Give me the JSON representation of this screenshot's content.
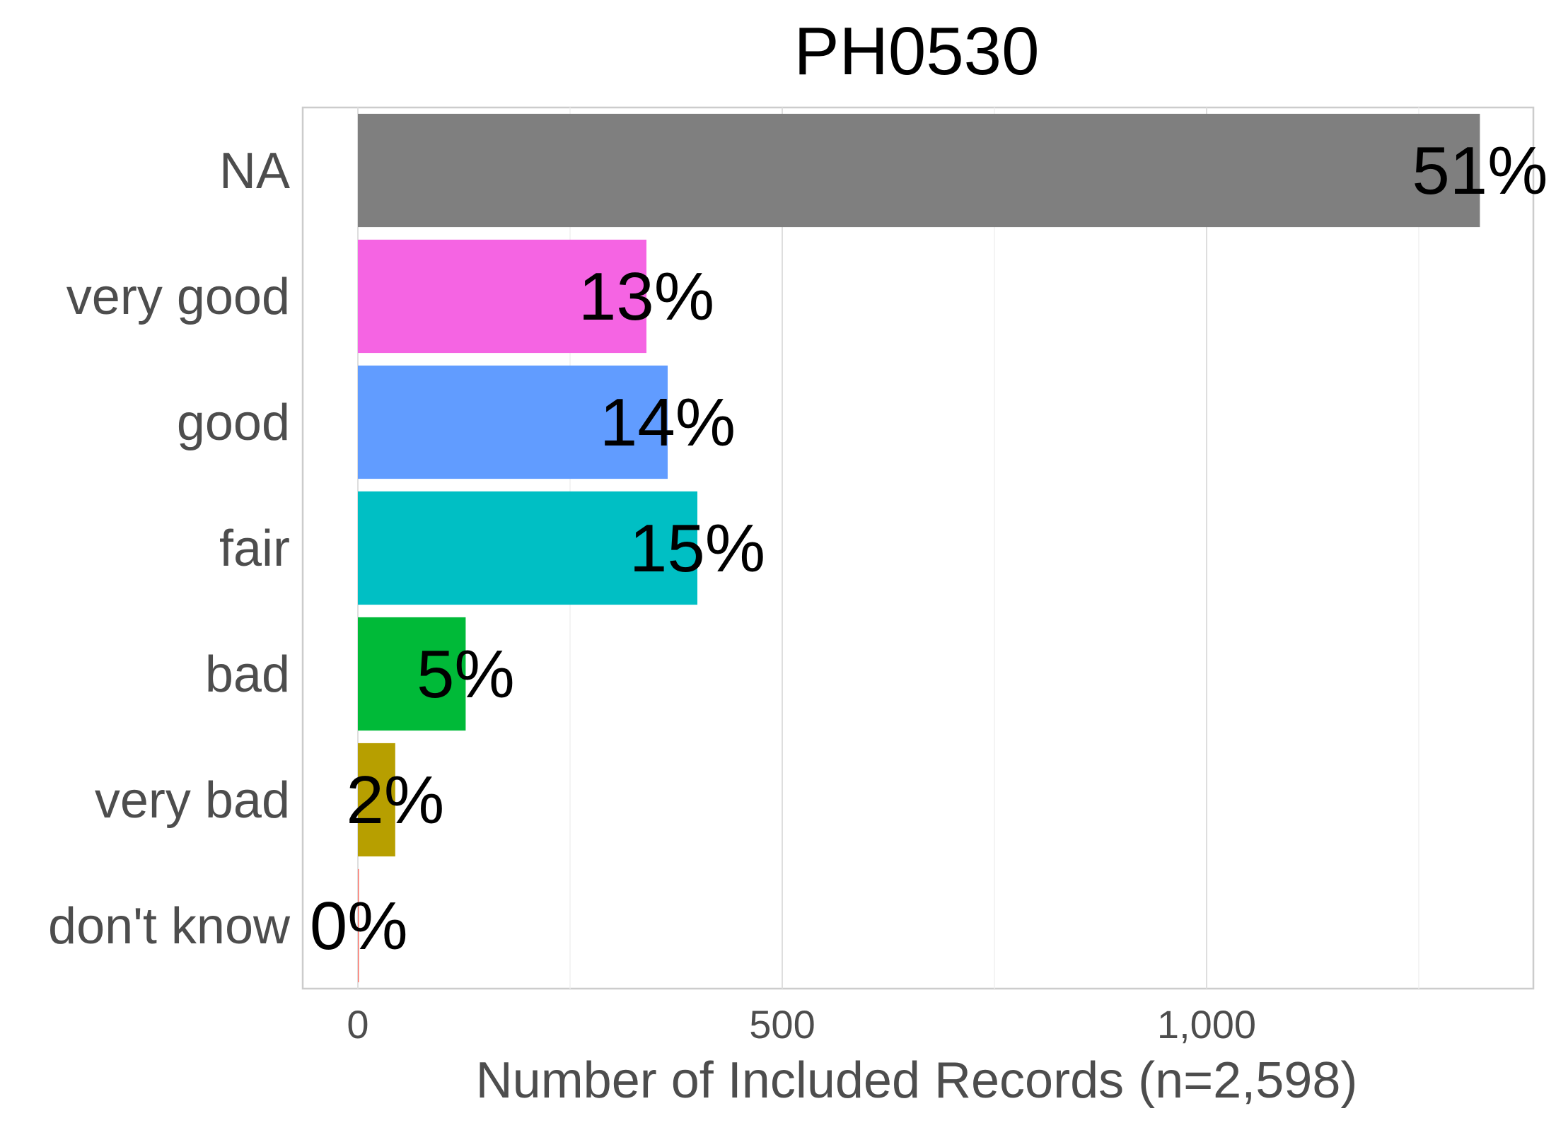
{
  "chart_data": {
    "type": "bar",
    "orientation": "horizontal",
    "title": "PH0530",
    "xlabel": "Number of Included Records (n=2,598)",
    "ylabel": "",
    "xlim": [
      -65,
      1385
    ],
    "x_ticks": [
      0,
      500,
      1000
    ],
    "x_tick_labels": [
      "0",
      "500",
      "1,000"
    ],
    "minor_x_ticks": [
      250,
      750,
      1250
    ],
    "grid": true,
    "legend": "none",
    "categories": [
      "NA",
      "very good",
      "good",
      "fair",
      "bad",
      "very bad",
      "don't know"
    ],
    "values": [
      1322,
      340,
      365,
      400,
      127,
      44,
      1
    ],
    "labels": [
      "51%",
      "13%",
      "14%",
      "15%",
      "5%",
      "2%",
      "0%"
    ],
    "colors": [
      "#7f7f7f",
      "#f564e3",
      "#619cff",
      "#00bfc4",
      "#00ba38",
      "#b79f00",
      "#f8766d"
    ]
  }
}
